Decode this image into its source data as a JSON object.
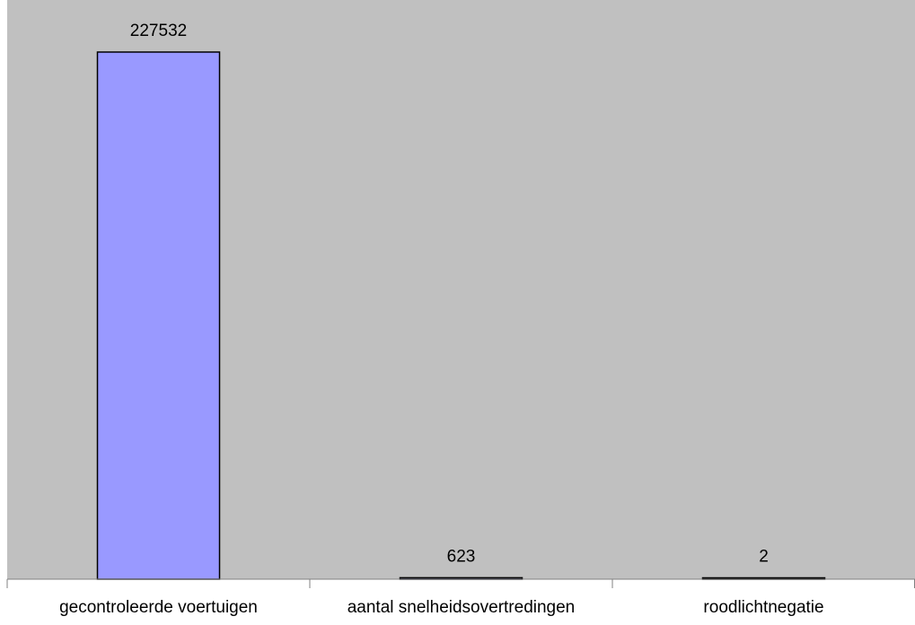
{
  "chart_data": {
    "type": "bar",
    "categories": [
      "gecontroleerde voertuigen",
      "aantal snelheidsovertredingen",
      "roodlichtnegatie"
    ],
    "values": [
      227532,
      623,
      2
    ],
    "data_labels": [
      "227532",
      "623",
      "2"
    ],
    "title": "",
    "xlabel": "",
    "ylabel": "",
    "ylim": [
      0,
      250000
    ],
    "grid": false,
    "legend": "none",
    "colors": {
      "plot_background": "#c0c0c0",
      "bar_fill": "#9999ff",
      "bar_stroke": "#000000",
      "axis": "#808080"
    }
  }
}
